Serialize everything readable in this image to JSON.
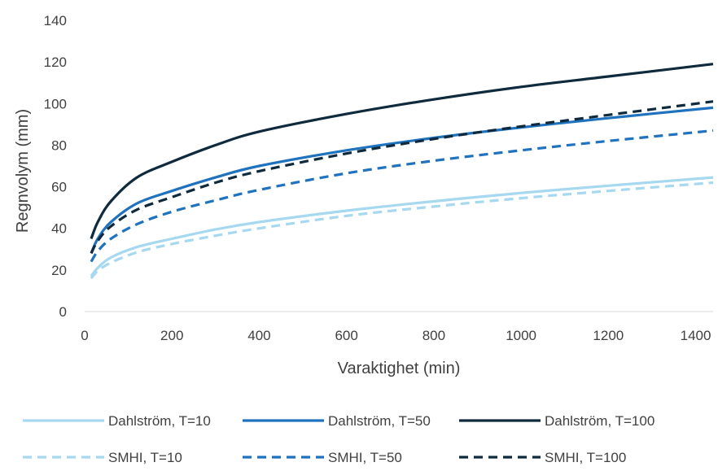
{
  "chart_data": {
    "type": "line",
    "title": "",
    "xlabel": "Varaktighet (min)",
    "ylabel": "Regnvolym (mm)",
    "xlim": [
      0,
      1440
    ],
    "ylim": [
      0,
      140
    ],
    "x_ticks": [
      0,
      200,
      400,
      600,
      800,
      1000,
      1200,
      1400
    ],
    "y_ticks": [
      0,
      20,
      40,
      60,
      80,
      100,
      120,
      140
    ],
    "grid": false,
    "legend_position": "bottom",
    "series": [
      {
        "name": "Dahlström, T=10",
        "color": "#a6d8f0",
        "dash": "solid",
        "x": [
          15,
          30,
          60,
          120,
          200,
          300,
          400,
          600,
          800,
          1000,
          1200,
          1440
        ],
        "y": [
          17,
          21,
          26,
          31,
          35,
          39.5,
          43,
          48.5,
          53,
          57,
          60.5,
          64.5
        ]
      },
      {
        "name": "Dahlström, T=50",
        "color": "#1f72bd",
        "dash": "solid",
        "x": [
          15,
          30,
          60,
          120,
          200,
          300,
          400,
          600,
          800,
          1000,
          1200,
          1440
        ],
        "y": [
          28,
          35,
          43,
          52,
          58,
          64.5,
          70,
          77.5,
          83.5,
          88.5,
          93,
          98
        ]
      },
      {
        "name": "Dahlström, T=100",
        "color": "#0e2a3c",
        "dash": "solid",
        "x": [
          15,
          30,
          60,
          120,
          200,
          300,
          400,
          600,
          800,
          1000,
          1200,
          1440
        ],
        "y": [
          35,
          43,
          53,
          64.5,
          72,
          80,
          86.5,
          95,
          102,
          108,
          113,
          119
        ]
      },
      {
        "name": "SMHI, T=10",
        "color": "#a6d8f0",
        "dash": "dashed",
        "x": [
          15,
          30,
          60,
          120,
          200,
          300,
          400,
          600,
          800,
          1000,
          1200,
          1440
        ],
        "y": [
          16,
          19.5,
          23.5,
          28.5,
          32.5,
          36.5,
          40,
          46,
          50.5,
          54.5,
          58,
          62
        ]
      },
      {
        "name": "SMHI, T=50",
        "color": "#1f72bd",
        "dash": "dashed",
        "x": [
          15,
          30,
          60,
          120,
          200,
          300,
          400,
          600,
          800,
          1000,
          1200,
          1440
        ],
        "y": [
          24,
          29,
          35,
          42,
          48,
          53.5,
          58.5,
          66.5,
          72.5,
          77.5,
          82,
          87
        ]
      },
      {
        "name": "SMHI, T=100",
        "color": "#0e2a3c",
        "dash": "dashed",
        "x": [
          15,
          30,
          60,
          120,
          200,
          300,
          400,
          600,
          800,
          1000,
          1200,
          1440
        ],
        "y": [
          28,
          34,
          41,
          49,
          55,
          62,
          67.5,
          76,
          83,
          89,
          94.5,
          101
        ]
      }
    ]
  }
}
